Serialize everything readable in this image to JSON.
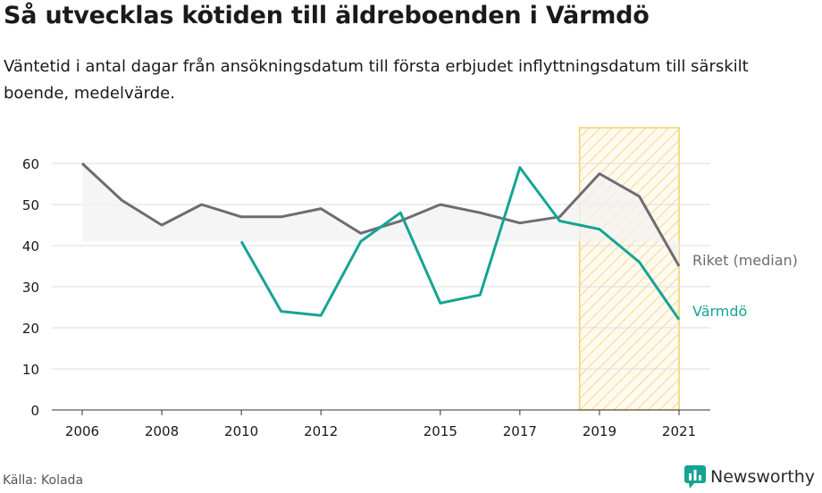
{
  "title": "Så utvecklas kötiden till äldreboenden i Värmdö",
  "subtitle": "Väntetid i antal dagar från ansökningsdatum till första erbjudet inflyttningsdatum till särskilt boende, medelvärde.",
  "source": "Källa: Kolada",
  "brand": "Newsworthy",
  "colors": {
    "riket": "#6e6c73",
    "varmdo": "#16a394",
    "grid": "#dddddd",
    "highlight_stroke": "#f4cf6a",
    "area": "#f1f1f1"
  },
  "chart_data": {
    "type": "line",
    "x_ticks": [
      2006,
      2008,
      2010,
      2012,
      2015,
      2017,
      2019,
      2021
    ],
    "y_ticks": [
      0,
      10,
      20,
      30,
      40,
      50,
      60
    ],
    "xlim": [
      2006,
      2021
    ],
    "ylim": [
      0,
      60
    ],
    "grid": true,
    "highlighted_range": [
      2018.5,
      2021
    ],
    "series": [
      {
        "name": "Riket (median)",
        "x": [
          2006,
          2007,
          2008,
          2009,
          2010,
          2011,
          2012,
          2013,
          2014,
          2015,
          2016,
          2017,
          2018,
          2019,
          2020,
          2021
        ],
        "values": [
          60,
          51,
          45,
          50,
          47,
          47,
          49,
          43,
          46,
          50,
          48,
          45.5,
          47,
          57.5,
          52,
          35
        ]
      },
      {
        "name": "Värmdö",
        "x": [
          2010,
          2011,
          2012,
          2013,
          2014,
          2015,
          2016,
          2017,
          2018,
          2019,
          2020,
          2021
        ],
        "values": [
          41,
          24,
          23,
          41,
          48,
          26,
          28,
          59,
          46,
          44,
          36,
          22
        ]
      }
    ]
  }
}
